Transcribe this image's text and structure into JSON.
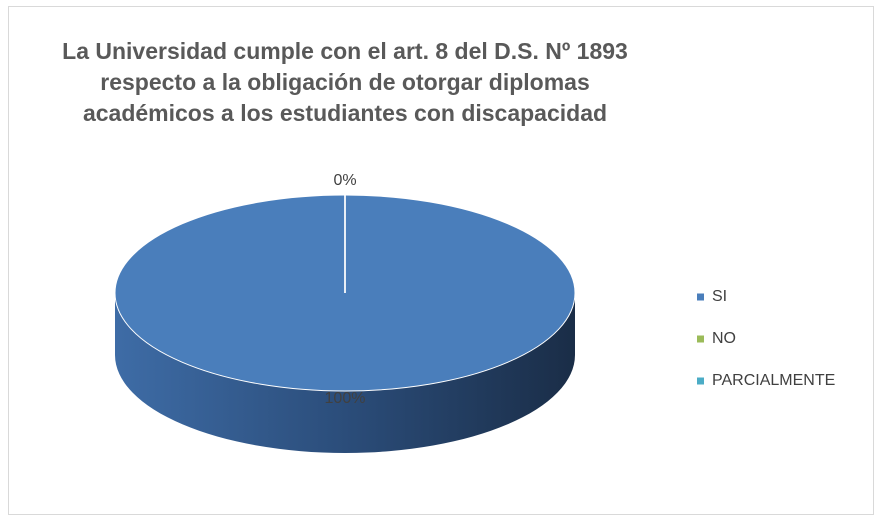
{
  "chart_data": {
    "type": "pie3d",
    "title": "La Universidad cumple con el art. 8 del D.S. Nº 1893\nrespecto a la obligación de otorgar diplomas\nacadémicos a los estudiantes con discapacidad",
    "categories": [
      "SI",
      "NO",
      "PARCIALMENTE"
    ],
    "values": [
      100,
      0,
      0
    ],
    "value_labels": [
      "100%",
      "0%",
      null
    ],
    "colors": [
      "#4a7ebb",
      "#9bbb59",
      "#4bacc6"
    ],
    "legend": "right"
  }
}
